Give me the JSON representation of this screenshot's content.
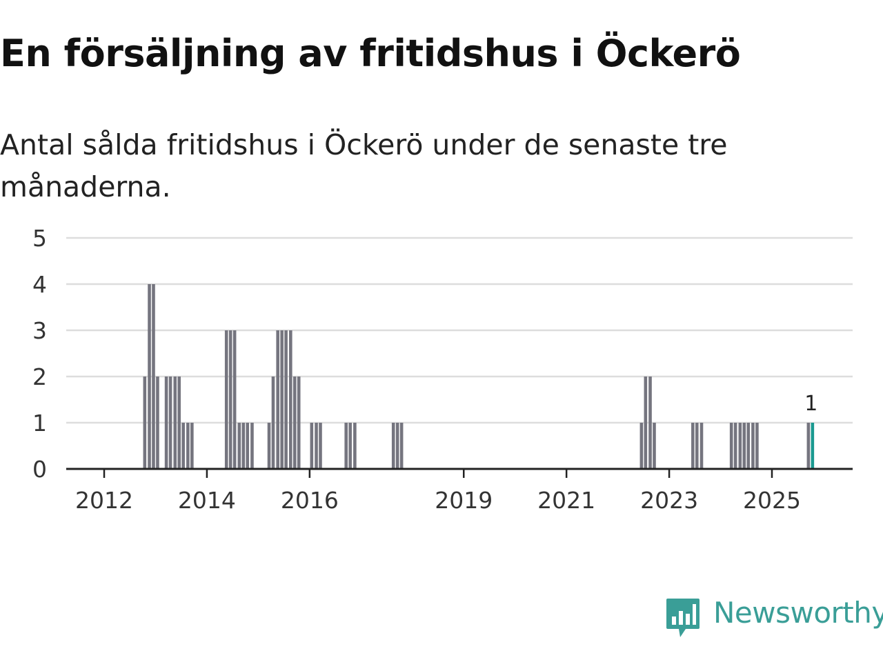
{
  "header": {
    "title": "En försäljning av fritidshus i Öckerö",
    "subtitle": "Antal sålda fritidshus i Öckerö under de senaste tre månaderna."
  },
  "brand": {
    "name": "Newsworthy",
    "color": "#3a9e97"
  },
  "colors": {
    "bar": "#75757f",
    "highlight": "#1b9a91",
    "grid": "#dddddd",
    "axis": "#222222"
  },
  "chart_data": {
    "type": "bar",
    "ylim": [
      0,
      5
    ],
    "yticks": [
      "0",
      "1",
      "2",
      "3",
      "4",
      "5"
    ],
    "xticks": [
      {
        "label": "2012",
        "x": 2012.0
      },
      {
        "label": "2014",
        "x": 2014.0
      },
      {
        "label": "2016",
        "x": 2016.0
      },
      {
        "label": "2019",
        "x": 2019.0
      },
      {
        "label": "2021",
        "x": 2021.0
      },
      {
        "label": "2023",
        "x": 2023.0
      },
      {
        "label": "2025",
        "x": 2025.0
      }
    ],
    "grid": true,
    "series": [
      {
        "x": [
          2012.79,
          2012.88,
          2012.96,
          2013.04,
          2013.21,
          2013.29,
          2013.38,
          2013.46,
          2013.54,
          2013.63,
          2013.71,
          2014.38,
          2014.46,
          2014.54,
          2014.63,
          2014.71,
          2014.79,
          2014.88,
          2015.21,
          2015.29,
          2015.38,
          2015.46,
          2015.54,
          2015.63,
          2015.71,
          2015.79,
          2016.04,
          2016.13,
          2016.21,
          2016.71,
          2016.79,
          2016.88,
          2017.63,
          2017.71,
          2017.79,
          2022.46,
          2022.54,
          2022.63,
          2022.71,
          2023.46,
          2023.54,
          2023.63,
          2024.21,
          2024.29,
          2024.38,
          2024.46,
          2024.54,
          2024.63,
          2024.71,
          2025.71
        ],
        "values": [
          2,
          4,
          4,
          2,
          2,
          2,
          2,
          2,
          1,
          1,
          1,
          3,
          3,
          3,
          1,
          1,
          1,
          1,
          1,
          2,
          3,
          3,
          3,
          3,
          2,
          2,
          1,
          1,
          1,
          1,
          1,
          1,
          1,
          1,
          1,
          1,
          2,
          2,
          1,
          1,
          1,
          1,
          1,
          1,
          1,
          1,
          1,
          1,
          1,
          1
        ]
      }
    ],
    "highlight": {
      "x": 2025.79,
      "value": 1,
      "label": "1"
    }
  }
}
